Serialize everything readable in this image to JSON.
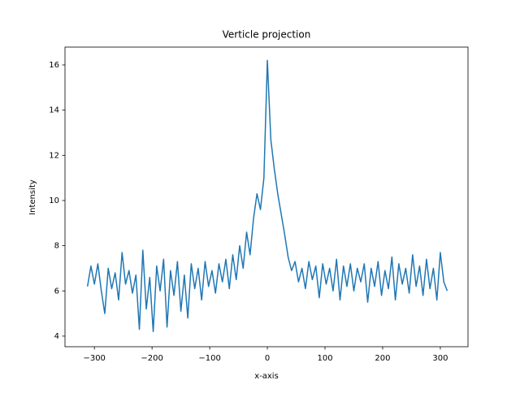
{
  "chart_data": {
    "type": "line",
    "title": "Verticle projection",
    "x_label": "x-axis",
    "y_label": "Intensity",
    "x": [
      -312,
      -306,
      -300,
      -294,
      -288,
      -282,
      -276,
      -270,
      -264,
      -258,
      -252,
      -246,
      -240,
      -234,
      -228,
      -222,
      -216,
      -210,
      -204,
      -198,
      -192,
      -186,
      -180,
      -174,
      -168,
      -162,
      -156,
      -150,
      -144,
      -138,
      -132,
      -126,
      -120,
      -114,
      -108,
      -102,
      -96,
      -90,
      -84,
      -78,
      -72,
      -66,
      -60,
      -54,
      -48,
      -42,
      -36,
      -30,
      -24,
      -18,
      -12,
      -6,
      0,
      6,
      12,
      18,
      24,
      30,
      36,
      42,
      48,
      54,
      60,
      66,
      72,
      78,
      84,
      90,
      96,
      102,
      108,
      114,
      120,
      126,
      132,
      138,
      144,
      150,
      156,
      162,
      168,
      174,
      180,
      186,
      192,
      198,
      204,
      210,
      216,
      222,
      228,
      234,
      240,
      246,
      252,
      258,
      264,
      270,
      276,
      282,
      288,
      294,
      300,
      306,
      312
    ],
    "series": [
      {
        "color": "#1f77b4",
        "values": [
          6.2,
          7.1,
          6.3,
          7.2,
          6.0,
          5.0,
          7.0,
          6.1,
          6.8,
          5.6,
          7.7,
          6.3,
          6.9,
          5.9,
          6.7,
          4.3,
          7.8,
          5.2,
          6.6,
          4.2,
          7.1,
          6.0,
          7.4,
          4.4,
          6.9,
          5.8,
          7.3,
          5.1,
          6.7,
          4.8,
          7.2,
          6.1,
          7.0,
          5.6,
          7.3,
          6.2,
          6.9,
          5.9,
          7.2,
          6.4,
          7.4,
          6.1,
          7.6,
          6.5,
          8.0,
          7.0,
          8.6,
          7.6,
          9.2,
          10.3,
          9.6,
          11.0,
          16.2,
          12.7,
          11.4,
          10.3,
          9.4,
          8.5,
          7.5,
          6.9,
          7.3,
          6.4,
          7.0,
          6.1,
          7.3,
          6.5,
          7.1,
          5.7,
          7.2,
          6.3,
          7.0,
          6.0,
          7.4,
          5.6,
          7.1,
          6.2,
          7.2,
          6.0,
          7.0,
          6.4,
          7.2,
          5.5,
          7.0,
          6.2,
          7.3,
          5.8,
          6.9,
          6.1,
          7.5,
          5.6,
          7.2,
          6.3,
          7.0,
          5.9,
          7.6,
          6.2,
          7.1,
          5.8,
          7.4,
          6.1,
          7.0,
          5.6,
          7.7,
          6.4,
          6.0
        ]
      }
    ],
    "xlim": [
      -351,
      348
    ],
    "ylim": [
      3.53,
      16.79
    ],
    "xticks": [
      {
        "value": -300,
        "label": "−300"
      },
      {
        "value": -200,
        "label": "−200"
      },
      {
        "value": -100,
        "label": "−100"
      },
      0,
      100,
      200,
      300
    ],
    "yticks": [
      4,
      6,
      8,
      10,
      12,
      14,
      16
    ],
    "grid": false
  }
}
